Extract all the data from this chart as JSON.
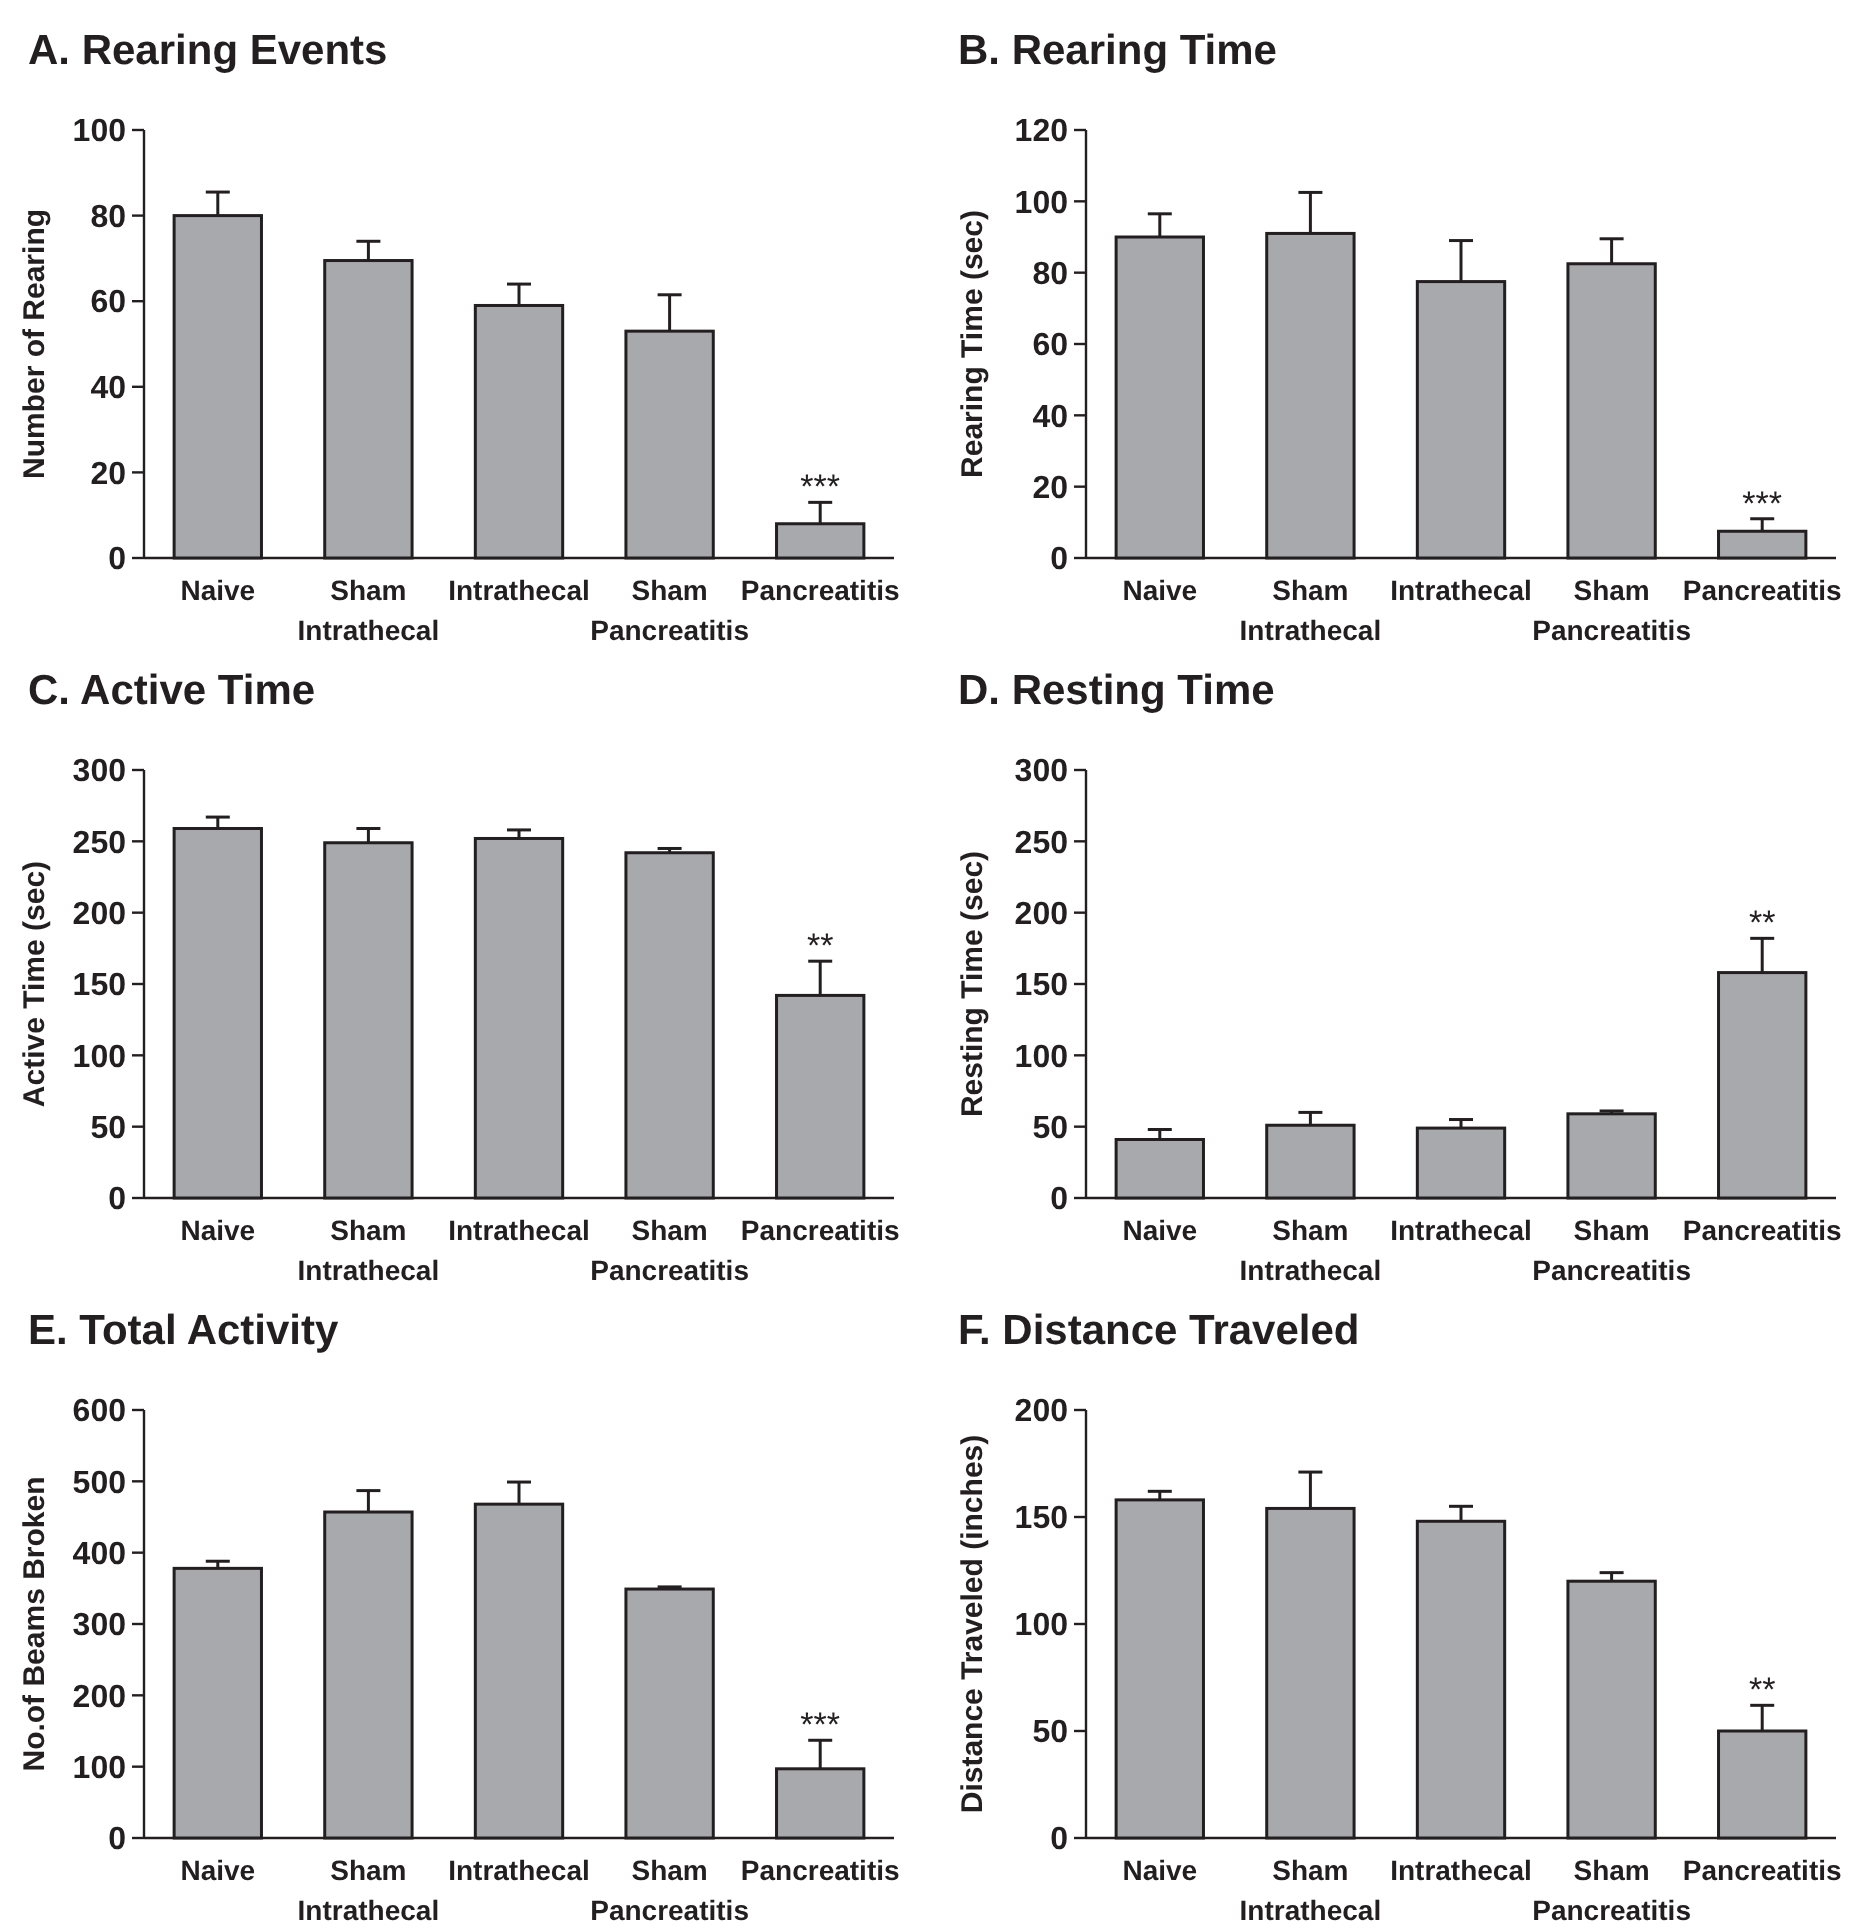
{
  "chart_data": [
    {
      "type": "bar",
      "title": "A. Rearing Events",
      "ylabel": "Number of Rearing",
      "categories": [
        "Naive",
        "Sham Intrathecal",
        "Intrathecal",
        "Sham Pancreatitis",
        "Pancreatitis"
      ],
      "values": [
        80,
        69.5,
        59,
        53,
        8
      ],
      "errors": [
        5.5,
        4.5,
        5,
        8.5,
        5
      ],
      "color": "#a7a9ac",
      "ylim": [
        0,
        100
      ],
      "yticks": [
        0,
        20,
        40,
        60,
        80,
        100
      ],
      "annotations": [
        {
          "text": "***",
          "x": "Pancreatitis",
          "y": 13
        }
      ]
    },
    {
      "type": "bar",
      "title": "B. Rearing Time",
      "ylabel": "Rearing Time (sec)",
      "categories": [
        "Naive",
        "Sham Intrathecal",
        "Intrathecal",
        "Sham Pancreatitis",
        "Pancreatitis"
      ],
      "values": [
        90,
        91,
        77.5,
        82.5,
        7.5
      ],
      "errors": [
        6.5,
        11.5,
        11.5,
        7,
        3.5
      ],
      "color": "#a7a9ac",
      "ylim": [
        0,
        120
      ],
      "yticks": [
        0,
        20,
        40,
        60,
        80,
        100,
        120
      ],
      "annotations": [
        {
          "text": "***",
          "x": "Pancreatitis",
          "y": 11
        }
      ]
    },
    {
      "type": "bar",
      "title": "C. Active Time",
      "ylabel": "Active Time (sec)",
      "categories": [
        "Naive",
        "Sham Intrathecal",
        "Intrathecal",
        "Sham Pancreatitis",
        "Pancreatitis"
      ],
      "values": [
        259,
        249,
        252,
        242,
        142
      ],
      "errors": [
        8,
        10,
        6,
        3,
        24
      ],
      "color": "#a7a9ac",
      "ylim": [
        0,
        300
      ],
      "yticks": [
        0,
        50,
        100,
        150,
        200,
        250,
        300
      ],
      "annotations": [
        {
          "text": "**",
          "x": "Pancreatitis",
          "y": 166
        }
      ]
    },
    {
      "type": "bar",
      "title": "D. Resting Time",
      "ylabel": "Resting Time (sec)",
      "categories": [
        "Naive",
        "Sham Intrathecal",
        "Intrathecal",
        "Sham Pancreatitis",
        "Pancreatitis"
      ],
      "values": [
        41,
        51,
        49,
        59,
        158
      ],
      "errors": [
        7,
        9,
        6,
        2,
        24
      ],
      "color": "#a7a9ac",
      "ylim": [
        0,
        300
      ],
      "yticks": [
        0,
        50,
        100,
        150,
        200,
        250,
        300
      ],
      "annotations": [
        {
          "text": "**",
          "x": "Pancreatitis",
          "y": 182
        }
      ]
    },
    {
      "type": "bar",
      "title": "E. Total Activity",
      "ylabel": "No.of Beams Broken",
      "categories": [
        "Naive",
        "Sham Intrathecal",
        "Intrathecal",
        "Sham Pancreatitis",
        "Pancreatitis"
      ],
      "values": [
        378,
        457,
        468,
        349,
        97
      ],
      "errors": [
        10,
        30,
        31,
        3,
        40
      ],
      "color": "#a7a9ac",
      "ylim": [
        0,
        600
      ],
      "yticks": [
        0,
        100,
        200,
        300,
        400,
        500,
        600
      ],
      "annotations": [
        {
          "text": "***",
          "x": "Pancreatitis",
          "y": 137
        }
      ]
    },
    {
      "type": "bar",
      "title": "F. Distance Traveled",
      "ylabel": "Distance Traveled (inches)",
      "categories": [
        "Naive",
        "Sham Intrathecal",
        "Intrathecal",
        "Sham Pancreatitis",
        "Pancreatitis"
      ],
      "values": [
        158,
        154,
        148,
        120,
        50
      ],
      "errors": [
        4,
        17,
        7,
        4,
        12
      ],
      "color": "#a7a9ac",
      "ylim": [
        0,
        200
      ],
      "yticks": [
        0,
        50,
        100,
        150,
        200
      ],
      "annotations": [
        {
          "text": "**",
          "x": "Pancreatitis",
          "y": 62
        }
      ]
    }
  ]
}
